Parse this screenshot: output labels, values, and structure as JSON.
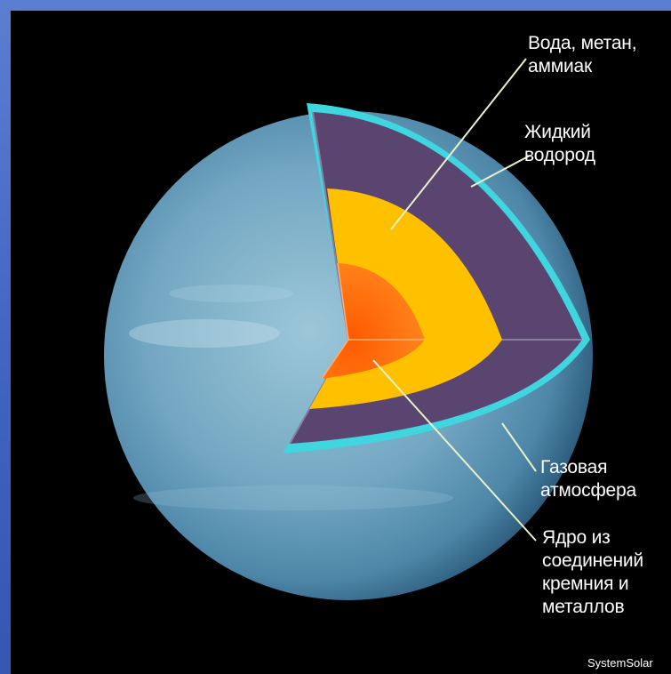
{
  "labels": {
    "water_methane_ammonia": "Вода, метан,\nаммиак",
    "liquid_hydrogen": "Жидкий\nводород",
    "gas_atmosphere": "Газовая\nатмосфера",
    "core": "Ядро из\nсоединений\nкремния и\nметаллов"
  },
  "credit": "SystemSolar",
  "colors": {
    "background": "#000000",
    "frame": "#4a70c8",
    "planet": "#7fb0c8",
    "atmosphere": "#3fd6e0",
    "liquid_hydrogen": "#5a4470",
    "water_methane_ammonia": "#ffc000",
    "core": "#ff7a10",
    "leader_line": "#e8f2c8"
  }
}
